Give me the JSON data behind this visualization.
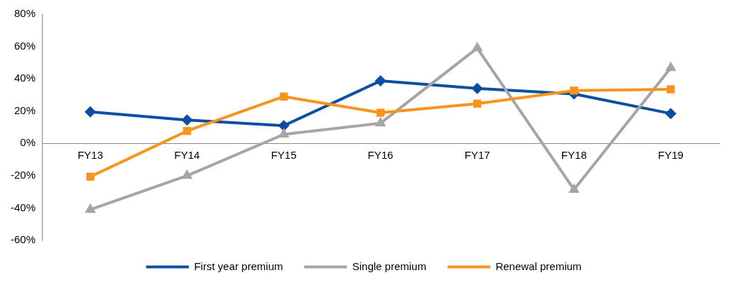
{
  "chart_data": {
    "type": "line",
    "categories": [
      "FY13",
      "FY14",
      "FY15",
      "FY16",
      "FY17",
      "FY18",
      "FY19"
    ],
    "series": [
      {
        "name": "First year premium",
        "color": "#0b4ea2",
        "marker": "diamond",
        "values": [
          19.5,
          14.5,
          11,
          38.7,
          34,
          30.6,
          18.5
        ]
      },
      {
        "name": "Single premium",
        "color": "#a5a5a5",
        "marker": "triangle",
        "values": [
          -41,
          -20,
          5.6,
          12.5,
          59,
          -28.6,
          46.8
        ]
      },
      {
        "name": "Renewal premium",
        "color": "#f7941d",
        "marker": "square",
        "values": [
          -20.6,
          7.7,
          29,
          19,
          24.6,
          32.7,
          33.5
        ]
      }
    ],
    "ylim": [
      -60,
      80
    ],
    "yticks": [
      {
        "value": -60,
        "label": "-60%"
      },
      {
        "value": -40,
        "label": "-40%"
      },
      {
        "value": -20,
        "label": "-20%"
      },
      {
        "value": 0,
        "label": "0%"
      },
      {
        "value": 20,
        "label": "20%"
      },
      {
        "value": 40,
        "label": "40%"
      },
      {
        "value": 60,
        "label": "60%"
      },
      {
        "value": 80,
        "label": "80%"
      }
    ],
    "grid": false,
    "legend": "bottom",
    "line_style": "solid"
  }
}
